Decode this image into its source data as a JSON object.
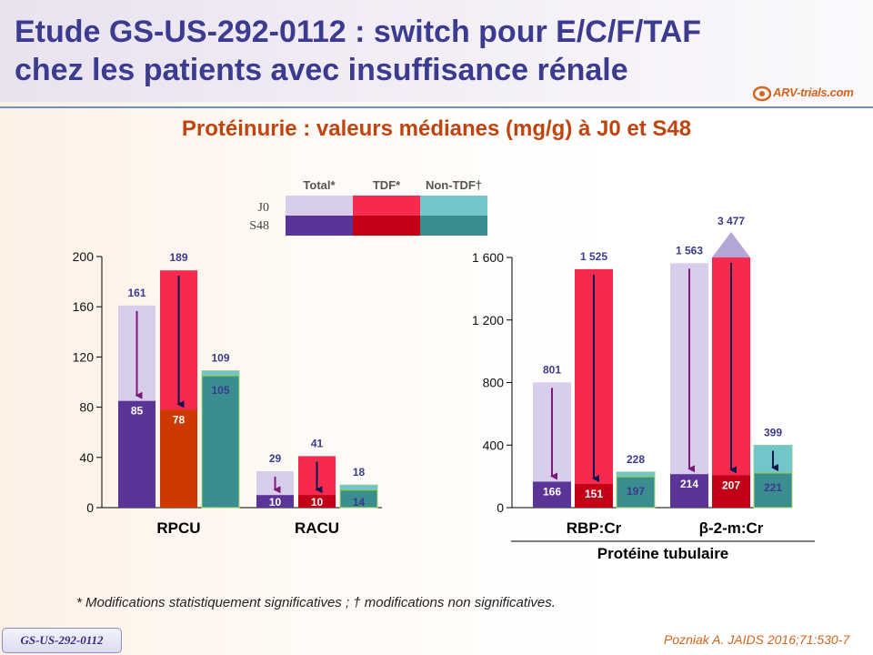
{
  "header": {
    "title_line1": "Etude GS-US-292-0112 : switch pour E/C/F/TAF",
    "title_line2": "chez les patients avec insuffisance rénale",
    "subtitle": "Protéinurie : valeurs médianes (mg/g) à J0 et S48",
    "logo_text": "ARV-trials.com"
  },
  "footer": {
    "footnote": "* Modifications statistiquement significatives ; † modifications non significatives.",
    "study_badge": "GS-US-292-0112",
    "reference": "Pozniak A. JAIDS 2016;71:530-7"
  },
  "colors": {
    "total_j0": "#d8cdea",
    "total_s48": "#5a3597",
    "tdf_j0": "#f6294f",
    "tdf_s48": "#c20016",
    "tdf_s48_left": "#cc3a00",
    "nontdf_j0": "#72c5c8",
    "nontdf_s48": "#3a8e8f",
    "arrow_total": "#7a1a7a",
    "arrow_dark": "#0f1450",
    "label_blue": "#3a3a8f"
  },
  "chart_data": [
    {
      "type": "bar",
      "title": "Protéinurie : valeurs médianes (mg/g) à J0 et S48",
      "legend": {
        "columns": [
          "Total*",
          "TDF*",
          "Non-TDF†"
        ],
        "rows": [
          "J0",
          "S48"
        ],
        "placement": "top-center"
      },
      "categories": [
        "RPCU",
        "RACU"
      ],
      "ylim": [
        0,
        200
      ],
      "yticks": [
        0,
        40,
        80,
        120,
        160,
        200
      ],
      "ytick_labels": [
        "0",
        "40",
        "80",
        "120",
        "160",
        "200"
      ],
      "series": [
        {
          "name": "Total",
          "j0": [
            161,
            29
          ],
          "s48": [
            85,
            10
          ]
        },
        {
          "name": "TDF",
          "j0": [
            189,
            41
          ],
          "s48": [
            78,
            10
          ]
        },
        {
          "name": "Non-TDF",
          "j0": [
            109,
            18
          ],
          "s48": [
            105,
            14
          ]
        }
      ],
      "j0_labels": [
        [
          "161",
          "189",
          "109"
        ],
        [
          "29",
          "41",
          "18"
        ]
      ],
      "s48_labels": [
        [
          "85",
          "78",
          "105"
        ],
        [
          "10",
          "10",
          "14"
        ]
      ]
    },
    {
      "type": "bar",
      "categories": [
        "RBP:Cr",
        "β-2-m:Cr"
      ],
      "group_label": "Protéine tubulaire",
      "ylim": [
        0,
        1600
      ],
      "yticks": [
        0,
        400,
        800,
        1200,
        1600
      ],
      "ytick_labels": [
        "0",
        "400",
        "800",
        "1 200",
        "1 600"
      ],
      "series": [
        {
          "name": "Total",
          "j0": [
            801,
            1563
          ],
          "s48": [
            166,
            214
          ]
        },
        {
          "name": "TDF",
          "j0": [
            1525,
            3477
          ],
          "s48": [
            151,
            207
          ]
        },
        {
          "name": "Non-TDF",
          "j0": [
            228,
            399
          ],
          "s48": [
            197,
            221
          ]
        }
      ],
      "j0_labels": [
        [
          "801",
          "1 525",
          "228"
        ],
        [
          "1 563",
          "3 477",
          "399"
        ]
      ],
      "s48_labels": [
        [
          "166",
          "151",
          "197"
        ],
        [
          "214",
          "207",
          "221"
        ]
      ]
    }
  ]
}
